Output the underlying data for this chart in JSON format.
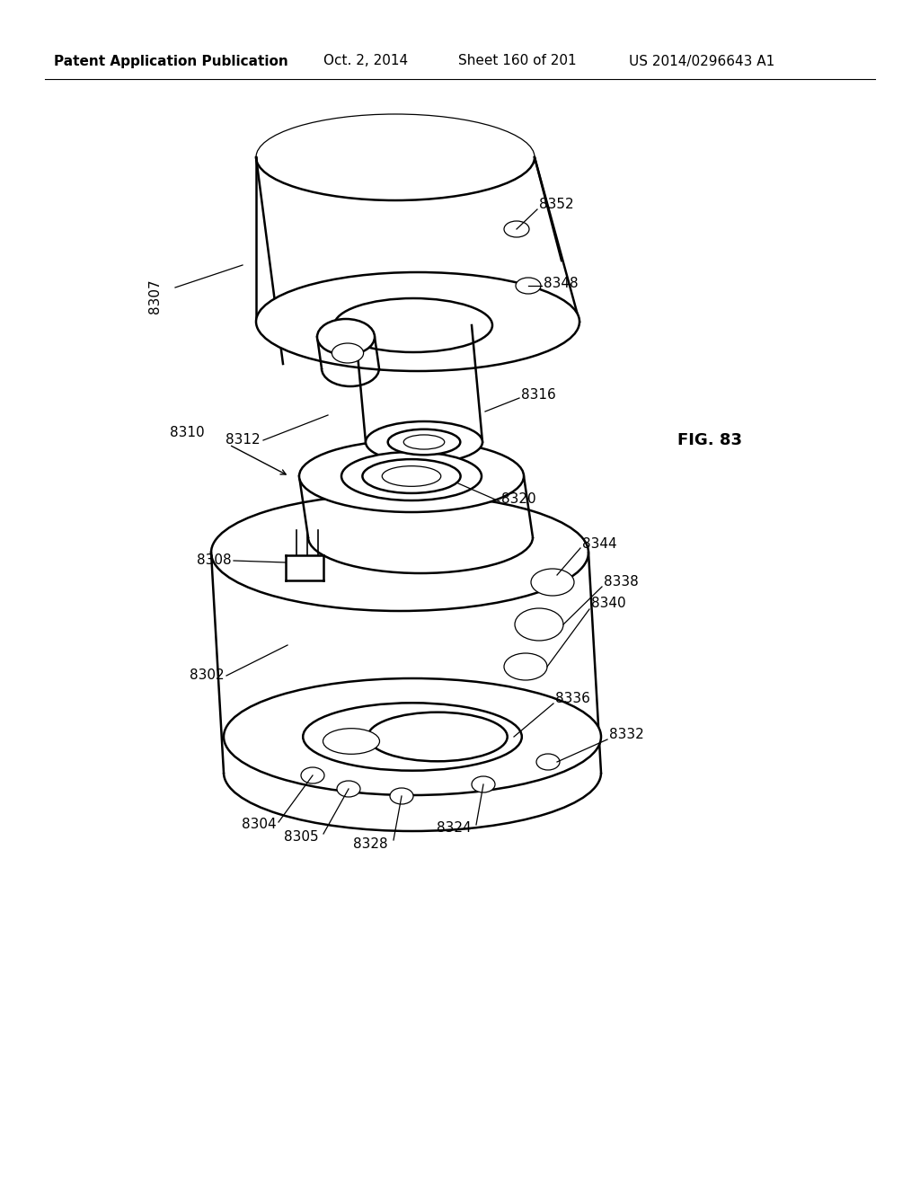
{
  "background_color": "#ffffff",
  "line_color": "#000000",
  "header_text": "Patent Application Publication",
  "header_date": "Oct. 2, 2014",
  "header_sheet": "Sheet 160 of 201",
  "header_patent": "US 2014/0296643 A1",
  "fig_label": "FIG. 83",
  "title_fontsize": 13,
  "label_fontsize": 11,
  "header_fontsize": 11
}
